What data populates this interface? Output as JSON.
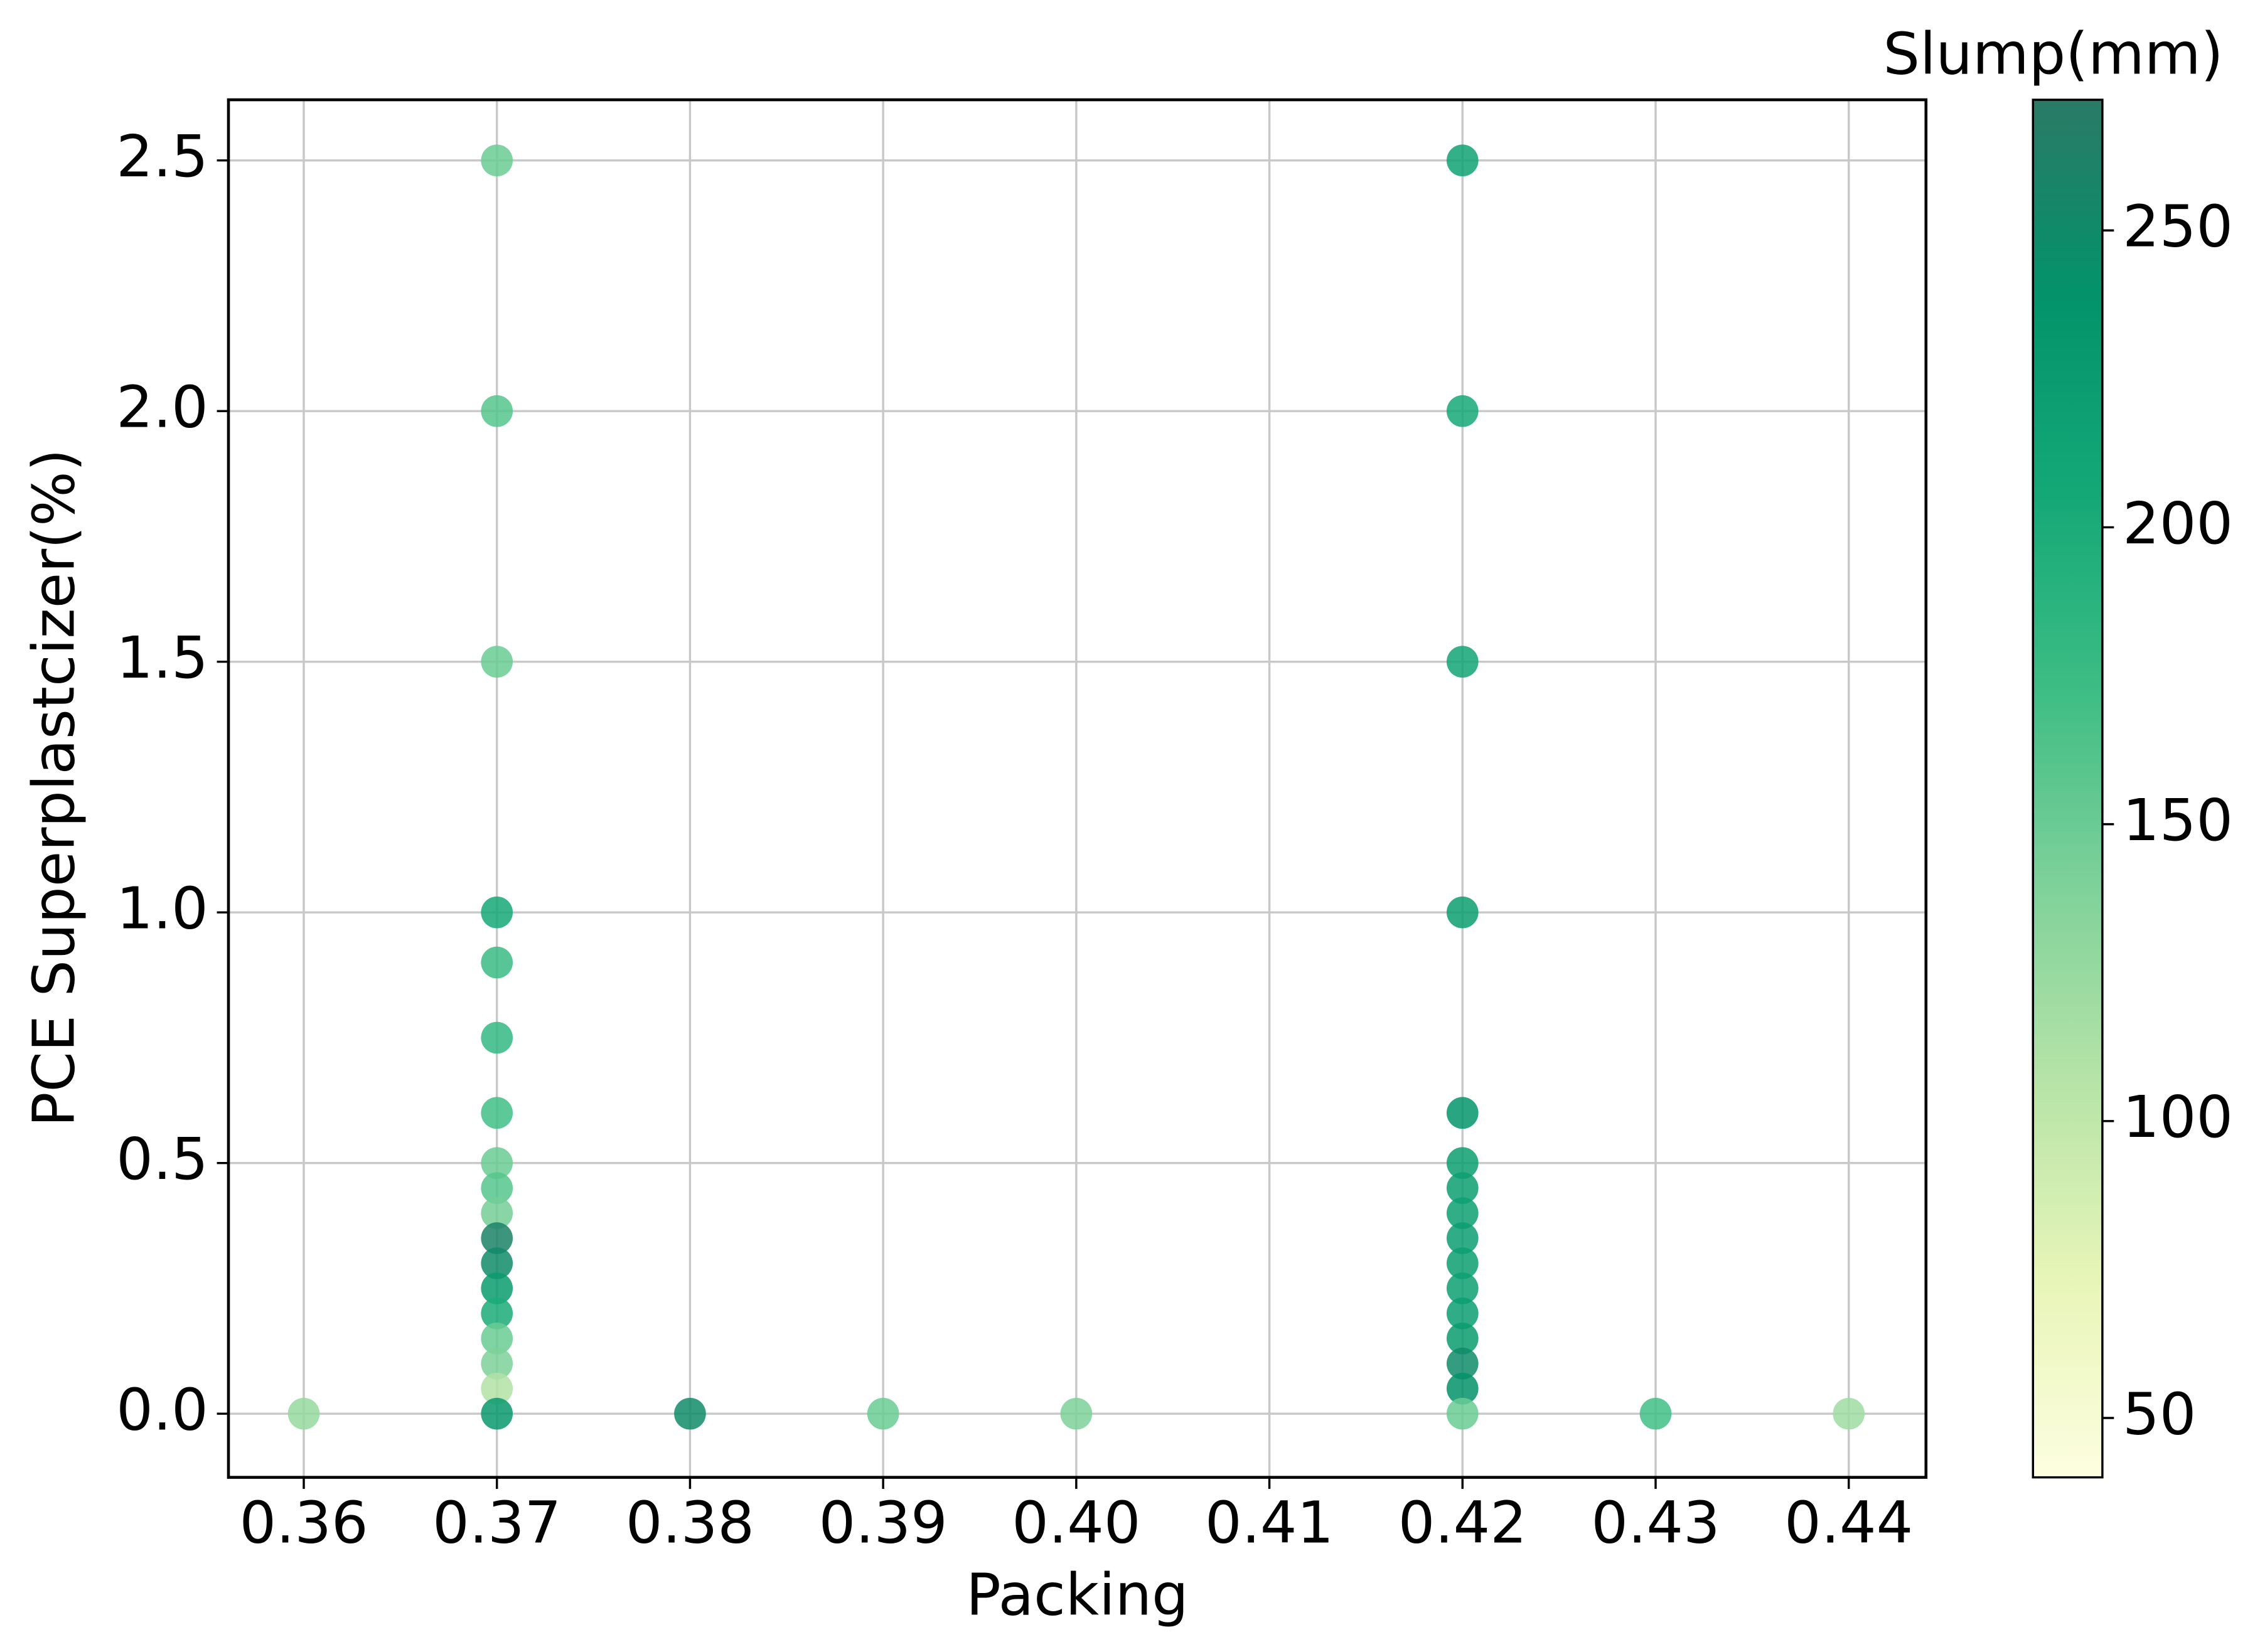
{
  "chart_data": {
    "type": "scatter",
    "x_label": "Packing",
    "y_label": "PCE Superplastcizer(%)",
    "colorbar_label": "Slump(mm)",
    "x": [
      0.36,
      0.37,
      0.37,
      0.37,
      0.37,
      0.37,
      0.37,
      0.37,
      0.37,
      0.37,
      0.37,
      0.37,
      0.37,
      0.37,
      0.37,
      0.37,
      0.37,
      0.37,
      0.37,
      0.38,
      0.39,
      0.4,
      0.42,
      0.42,
      0.42,
      0.42,
      0.42,
      0.42,
      0.42,
      0.42,
      0.42,
      0.42,
      0.42,
      0.42,
      0.42,
      0.42,
      0.42,
      0.42,
      0.43,
      0.44
    ],
    "values": [
      0,
      2.5,
      2.0,
      1.5,
      1.0,
      0.9,
      0.75,
      0.6,
      0.5,
      0.45,
      0.4,
      0.35,
      0.3,
      0.25,
      0.2,
      0.15,
      0.1,
      0.05,
      0,
      0,
      0,
      0,
      2.5,
      2.0,
      1.5,
      1.0,
      0.6,
      0.5,
      0.45,
      0.4,
      0.35,
      0.3,
      0.25,
      0.2,
      0.15,
      0.1,
      0.05,
      0,
      0,
      0
    ],
    "color_values": [
      125,
      150,
      160,
      150,
      205,
      175,
      180,
      170,
      150,
      160,
      145,
      260,
      250,
      225,
      200,
      150,
      140,
      110,
      230,
      250,
      150,
      140,
      215,
      205,
      210,
      220,
      235,
      220,
      220,
      218,
      222,
      220,
      218,
      222,
      225,
      250,
      240,
      150,
      170,
      120
    ],
    "xlim": [
      0.3561,
      0.444
    ],
    "ylim": [
      -0.127,
      2.621
    ],
    "clim": [
      40,
      272
    ],
    "xticks": [
      0.36,
      0.37,
      0.38,
      0.39,
      {
        "value": 0.4,
        "label": "0.40"
      },
      0.41,
      0.42,
      0.43,
      0.44
    ],
    "yticks": [
      {
        "value": 0,
        "label": "0.0"
      },
      0.5,
      {
        "value": 1,
        "label": "1.0"
      },
      1.5,
      {
        "value": 2,
        "label": "2.0"
      },
      2.5
    ],
    "cticks": [
      50,
      100,
      150,
      200,
      250
    ],
    "colormap": [
      "#fdfee0",
      "#e8f5b8",
      "#b7e4a8",
      "#7fd19a",
      "#3dbd84",
      "#14a877",
      "#03936a",
      "#2a7a66"
    ],
    "grid": true
  }
}
